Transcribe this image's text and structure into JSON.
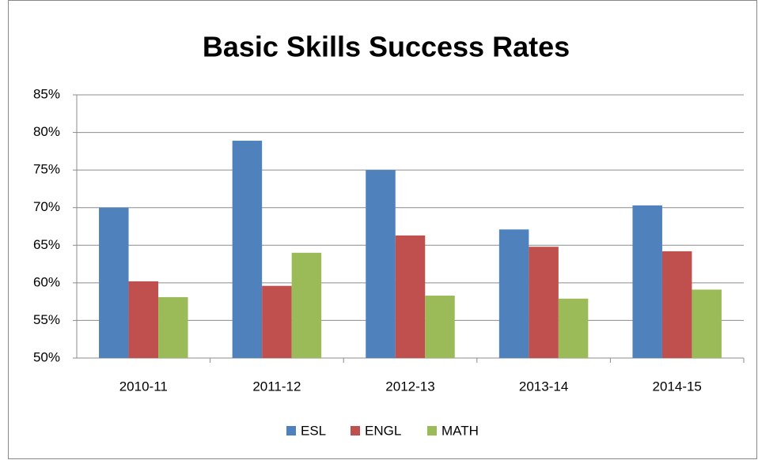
{
  "chart_data": {
    "type": "bar",
    "title": "Basic Skills Success Rates",
    "categories": [
      "2010-11",
      "2011-12",
      "2012-13",
      "2013-14",
      "2014-15"
    ],
    "series": [
      {
        "name": "ESL",
        "color": "#4f81bd",
        "values": [
          70,
          78.9,
          75,
          67.1,
          70.3
        ]
      },
      {
        "name": "ENGL",
        "color": "#c0504d",
        "values": [
          60.2,
          59.6,
          66.3,
          64.8,
          64.2
        ]
      },
      {
        "name": "MATH",
        "color": "#9bbb59",
        "values": [
          58.1,
          64,
          58.3,
          57.9,
          59.1
        ]
      }
    ],
    "ylim": [
      50,
      85
    ],
    "yticks": [
      {
        "value": 50,
        "label": "50%"
      },
      {
        "value": 55,
        "label": "55%"
      },
      {
        "value": 60,
        "label": "60%"
      },
      {
        "value": 65,
        "label": "65%"
      },
      {
        "value": 70,
        "label": "70%"
      },
      {
        "value": 75,
        "label": "75%"
      },
      {
        "value": 80,
        "label": "80%"
      },
      {
        "value": 85,
        "label": "85%"
      }
    ],
    "grid": true,
    "legend": "bottom"
  }
}
